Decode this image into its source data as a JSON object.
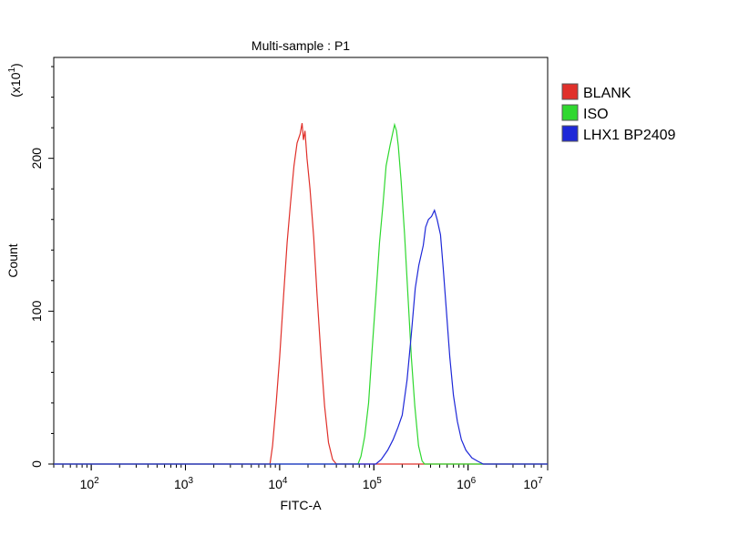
{
  "chart_data": {
    "type": "line",
    "title": "Multi-sample : P1",
    "xlabel": "FITC-A",
    "ylabel": "Count",
    "y_multiplier_label": "(x10",
    "y_multiplier_exp": "1",
    "y_multiplier_close": ")",
    "x_scale": "log",
    "xlim": [
      40,
      7000000
    ],
    "ylim": [
      0,
      266
    ],
    "y_ticks": [
      "0",
      "100",
      "200"
    ],
    "y_tick_values": [
      0,
      100,
      200
    ],
    "x_ticks": [
      {
        "base": "10",
        "exp": "2",
        "value": 100
      },
      {
        "base": "10",
        "exp": "3",
        "value": 1000
      },
      {
        "base": "10",
        "exp": "4",
        "value": 10000
      },
      {
        "base": "10",
        "exp": "5",
        "value": 100000
      },
      {
        "base": "10",
        "exp": "6",
        "value": 1000000
      },
      {
        "base": "10",
        "exp": "7",
        "value": 10000000
      }
    ],
    "legend_position": "top-right outside",
    "grid": false,
    "series": [
      {
        "name": "BLANK",
        "color": "#e0302a",
        "points": [
          [
            7900,
            0
          ],
          [
            8400,
            12
          ],
          [
            9200,
            40
          ],
          [
            10000,
            70
          ],
          [
            11000,
            110
          ],
          [
            12000,
            145
          ],
          [
            13000,
            170
          ],
          [
            14200,
            195
          ],
          [
            15300,
            210
          ],
          [
            16500,
            216
          ],
          [
            17300,
            223
          ],
          [
            17900,
            212
          ],
          [
            18600,
            218
          ],
          [
            19500,
            200
          ],
          [
            21000,
            180
          ],
          [
            23000,
            148
          ],
          [
            25000,
            110
          ],
          [
            27500,
            70
          ],
          [
            30000,
            38
          ],
          [
            33000,
            14
          ],
          [
            36500,
            3
          ],
          [
            40000,
            0
          ]
        ]
      },
      {
        "name": "ISO",
        "color": "#2fd82f",
        "points": [
          [
            68000,
            0
          ],
          [
            73000,
            5
          ],
          [
            80000,
            18
          ],
          [
            88000,
            40
          ],
          [
            96000,
            75
          ],
          [
            105000,
            110
          ],
          [
            115000,
            145
          ],
          [
            125000,
            170
          ],
          [
            135000,
            195
          ],
          [
            148000,
            208
          ],
          [
            158000,
            216
          ],
          [
            166000,
            222
          ],
          [
            174000,
            218
          ],
          [
            182000,
            208
          ],
          [
            195000,
            185
          ],
          [
            212000,
            150
          ],
          [
            230000,
            110
          ],
          [
            250000,
            70
          ],
          [
            272000,
            38
          ],
          [
            298000,
            12
          ],
          [
            325000,
            2
          ],
          [
            345000,
            0
          ]
        ]
      },
      {
        "name": "LHX1 BP2409",
        "color": "#1e28d8",
        "points": [
          [
            105000,
            0
          ],
          [
            120000,
            3
          ],
          [
            140000,
            9
          ],
          [
            160000,
            16
          ],
          [
            180000,
            24
          ],
          [
            200000,
            32
          ],
          [
            225000,
            55
          ],
          [
            250000,
            85
          ],
          [
            275000,
            115
          ],
          [
            300000,
            130
          ],
          [
            335000,
            143
          ],
          [
            355000,
            155
          ],
          [
            380000,
            160
          ],
          [
            410000,
            162
          ],
          [
            440000,
            166
          ],
          [
            470000,
            160
          ],
          [
            510000,
            150
          ],
          [
            545000,
            128
          ],
          [
            590000,
            100
          ],
          [
            640000,
            70
          ],
          [
            700000,
            45
          ],
          [
            770000,
            28
          ],
          [
            850000,
            16
          ],
          [
            950000,
            9
          ],
          [
            1100000,
            4
          ],
          [
            1250000,
            2
          ],
          [
            1450000,
            0
          ]
        ]
      }
    ]
  }
}
